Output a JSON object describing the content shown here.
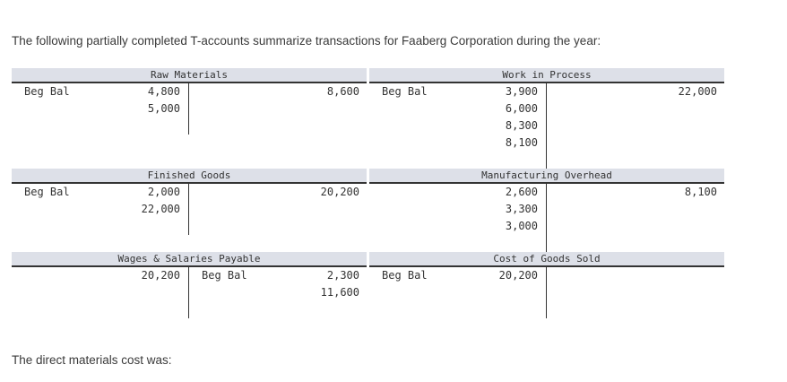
{
  "intro": "The following partially completed T-accounts summarize transactions for Faaberg Corporation during the year:",
  "question": "The direct materials cost was:",
  "accounts": {
    "raw_materials": {
      "title": "Raw Materials",
      "left_label": "Beg Bal",
      "debits": [
        "4,800",
        "5,000"
      ],
      "credits": [
        "8,600"
      ]
    },
    "work_in_process": {
      "title": "Work in Process",
      "left_label": "Beg Bal",
      "debits": [
        "3,900",
        "6,000",
        "8,300",
        "8,100"
      ],
      "credits": [
        "22,000"
      ]
    },
    "finished_goods": {
      "title": "Finished Goods",
      "left_label": "Beg Bal",
      "debits": [
        "2,000",
        "22,000"
      ],
      "credits": [
        "20,200"
      ]
    },
    "manufacturing_overhead": {
      "title": "Manufacturing Overhead",
      "debits": [
        "2,600",
        "3,300",
        "3,000"
      ],
      "credits": [
        "8,100"
      ]
    },
    "wages_salaries_payable": {
      "title": "Wages & Salaries Payable",
      "right_label": "Beg Bal",
      "debits": [
        "20,200"
      ],
      "credits": [
        "2,300",
        "11,600"
      ]
    },
    "cost_of_goods_sold": {
      "title": "Cost of Goods Sold",
      "left_label": "Beg Bal",
      "debits": [
        "20,200"
      ],
      "credits": []
    }
  }
}
